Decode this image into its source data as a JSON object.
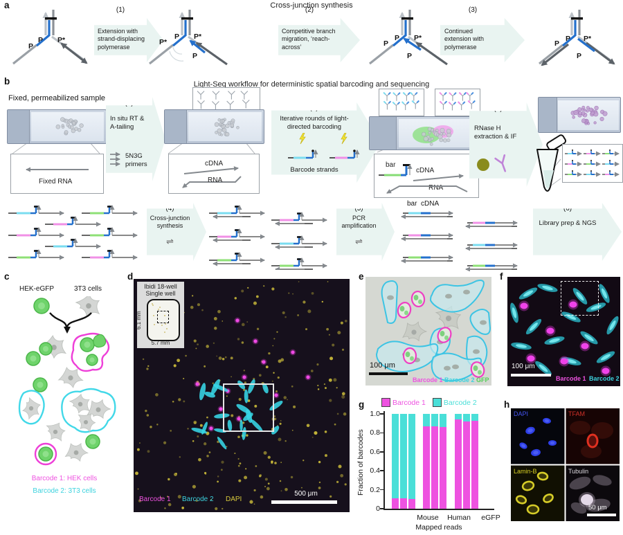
{
  "a": {
    "label": "a",
    "title": "Cross-junction synthesis",
    "steps": [
      {
        "num": "(1)",
        "text": "Extension with strand-displacing polymerase"
      },
      {
        "num": "(2)",
        "text": "Competitive branch migration, ‘reach-across’"
      },
      {
        "num": "(3)",
        "text": "Continued extension with polymerase"
      }
    ],
    "junction_labels": [
      [
        "P",
        "P",
        "P*"
      ],
      [
        "P*",
        "P",
        "P*",
        "P"
      ],
      [
        "P",
        "P",
        "P*",
        "P"
      ],
      [
        "P",
        "P",
        "P*",
        "P"
      ]
    ]
  },
  "b": {
    "label": "b",
    "title": "Light-Seq workflow for deterministic spatial barcoding and sequencing",
    "sample_label": "Fixed, permeabilized sample",
    "steps": [
      {
        "num": "(1)",
        "text": "In situ RT & A-tailing"
      },
      {
        "num": "(2)",
        "text": "Iterative rounds of light-directed barcoding"
      },
      {
        "num": "(3)",
        "text": "RNase H extraction & IF"
      },
      {
        "num": "(4)",
        "text": "Cross-junction synthesis"
      },
      {
        "num": "(5)",
        "text": "PCR amplification"
      },
      {
        "num": "(6)",
        "text": "Library prep & NGS"
      }
    ],
    "primers": "5N3G primers",
    "fixed_rna": "Fixed RNA",
    "cdna": "cDNA",
    "rna": "RNA",
    "barcode_strands": "Barcode strands",
    "bar": "bar",
    "eq_symbol": "⇌"
  },
  "c": {
    "label": "c",
    "cell_types": [
      "HEK-eGFP",
      "3T3 cells"
    ],
    "legend": [
      {
        "text": "Barcode 1: HEK cells"
      },
      {
        "text": "Barcode 2: 3T3 cells"
      }
    ]
  },
  "d": {
    "label": "d",
    "inset": {
      "line1": "Ibidi 18-well",
      "line2": "Single well",
      "height_label": "6.1 mm",
      "width_label": "5.7 mm"
    },
    "channels": [
      "Barcode 1",
      "Barcode 2",
      "DAPI"
    ],
    "scale_bar": "500 μm"
  },
  "e": {
    "label": "e",
    "scale_bar": "100 μm",
    "channels": [
      "Barcode 1",
      "Barcode 2",
      "GFP"
    ]
  },
  "f": {
    "label": "f",
    "scale_bar": "100 μm",
    "channels": [
      "Barcode 1",
      "Barcode 2"
    ]
  },
  "g": {
    "label": "g"
  },
  "h": {
    "label": "h",
    "quadrants": [
      {
        "name": "DAPI"
      },
      {
        "name": "TFAM"
      },
      {
        "name": "Lamin-B"
      },
      {
        "name": "Tubulin"
      }
    ],
    "scale_bar": "50 μm"
  },
  "chart_data": {
    "type": "bar",
    "subtype": "stacked, 3 replicates per category",
    "title": "",
    "ylabel": "Fraction of barcodes",
    "xlabel": "Mapped reads",
    "ylim": [
      0,
      1.0
    ],
    "yticks": [
      "0",
      "0.2",
      "0.4",
      "0.6",
      "0.8",
      "1.0"
    ],
    "categories": [
      "Mouse",
      "Human",
      "eGFP"
    ],
    "series": [
      {
        "name": "Barcode 1",
        "color": "#ee52e0",
        "values": [
          [
            0.11,
            0.11,
            0.1
          ],
          [
            0.87,
            0.87,
            0.86
          ],
          [
            0.94,
            0.92,
            0.93
          ]
        ]
      },
      {
        "name": "Barcode 2",
        "color": "#4adfd8",
        "values": [
          [
            0.89,
            0.89,
            0.9
          ],
          [
            0.13,
            0.13,
            0.14
          ],
          [
            0.06,
            0.08,
            0.07
          ]
        ]
      }
    ],
    "legend_position": "top",
    "grid": false
  },
  "colors": {
    "barcode1_magenta": "#ee52e0",
    "barcode2_cyan": "#3cd2de",
    "gfp_green": "#55cf58",
    "dapi_yellow": "#d8ca3c",
    "blue_strand": "#2470cc",
    "arrow_fill": "#e9f4f1",
    "dapi_blue": "#4354f0",
    "tfam_red": "#d03028",
    "laminb_yellow": "#d8d024",
    "tubulin_gray": "#dcd8de"
  }
}
